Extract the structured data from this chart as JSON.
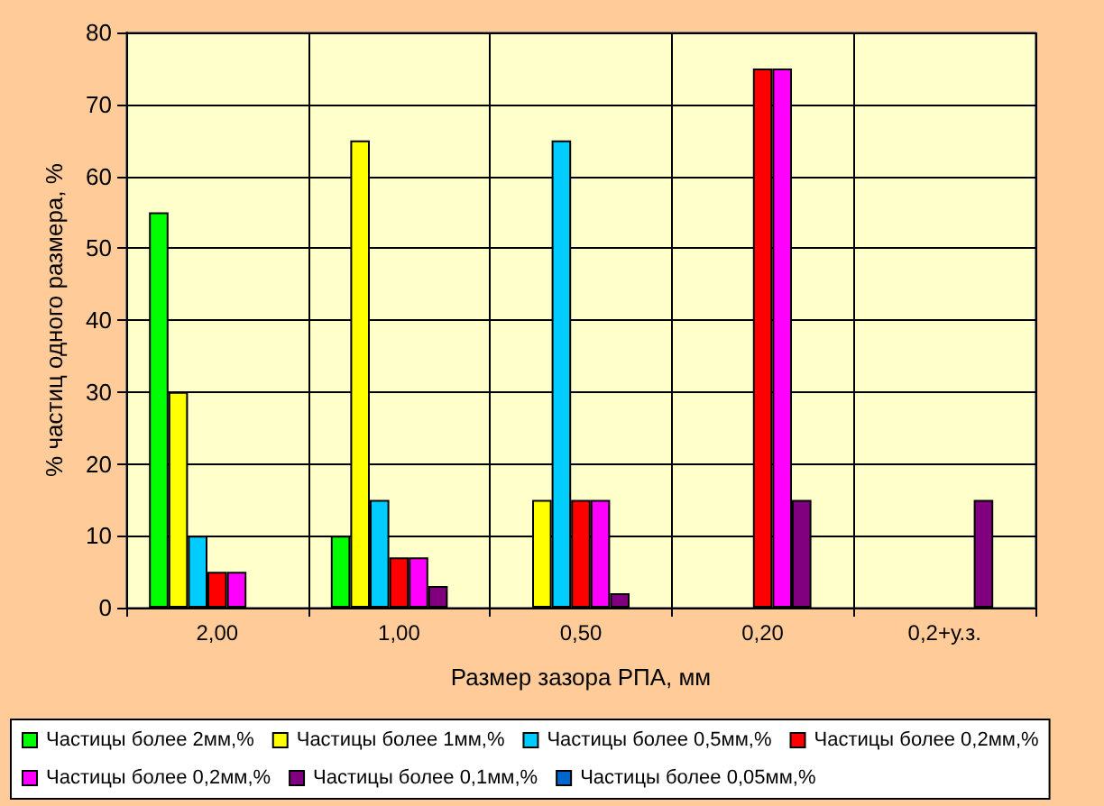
{
  "chart_data": {
    "type": "bar",
    "xlabel": "Размер зазора РПА, мм",
    "ylabel": "% частиц одного размера, %",
    "categories": [
      "2,00",
      "1,00",
      "0,50",
      "0,20",
      "0,2+у.з."
    ],
    "series": [
      {
        "name": "Частицы более 2мм,%",
        "color": "#00ff00",
        "values": [
          55,
          10,
          0,
          0,
          0
        ]
      },
      {
        "name": "Частицы более 1мм,%",
        "color": "#ffff00",
        "values": [
          30,
          65,
          15,
          0,
          0
        ]
      },
      {
        "name": "Частицы более 0,5мм,%",
        "color": "#00ccff",
        "values": [
          10,
          15,
          65,
          0,
          0
        ]
      },
      {
        "name": "Частицы более 0,2мм,%",
        "color": "#ff0000",
        "values": [
          5,
          7,
          15,
          75,
          0
        ]
      },
      {
        "name": "Частицы более 0,2мм,%",
        "color": "#ff00ff",
        "values": [
          5,
          7,
          15,
          75,
          0
        ]
      },
      {
        "name": "Частицы более 0,1мм,%",
        "color": "#800080",
        "values": [
          0,
          3,
          2,
          15,
          15
        ]
      },
      {
        "name": "Частицы более 0,05мм,%",
        "color": "#0066cc",
        "values": [
          0,
          0,
          0,
          0,
          0
        ]
      }
    ],
    "ylim": [
      0,
      80
    ],
    "yticks": [
      0,
      10,
      20,
      30,
      40,
      50,
      60,
      70,
      80
    ],
    "grid": true,
    "legend": "bottom"
  }
}
